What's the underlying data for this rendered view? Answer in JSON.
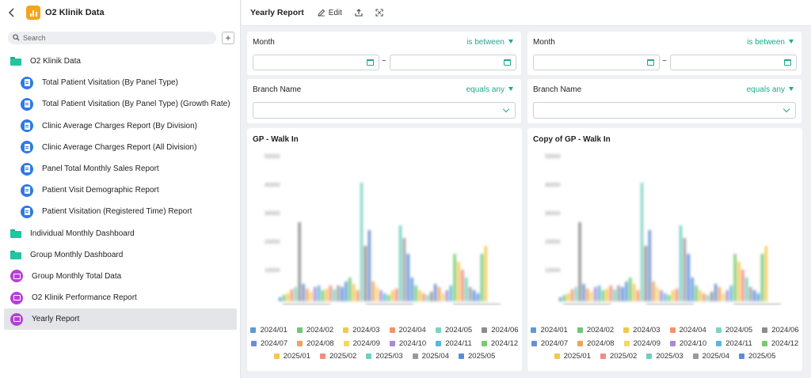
{
  "app": {
    "title": "O2 Klinik Data"
  },
  "search": {
    "placeholder": "Search"
  },
  "sidebar": {
    "items": [
      {
        "label": "O2 Klinik Data",
        "kind": "folder",
        "level": 1,
        "icon": "folder-icon"
      },
      {
        "label": "Total Patient Visitation (By Panel Type)",
        "kind": "report",
        "level": 2,
        "icon": "report-icon"
      },
      {
        "label": "Total Patient Visitation (By Panel Type) (Growth Rate)",
        "kind": "report",
        "level": 2,
        "icon": "report-icon"
      },
      {
        "label": "Clinic Average Charges Report (By Division)",
        "kind": "report",
        "level": 2,
        "icon": "report-icon"
      },
      {
        "label": "Clinic Average Charges Report (All Division)",
        "kind": "report",
        "level": 2,
        "icon": "report-icon"
      },
      {
        "label": "Panel Total Monthly Sales Report",
        "kind": "report",
        "level": 2,
        "icon": "report-icon"
      },
      {
        "label": "Patient Visit Demographic Report",
        "kind": "report",
        "level": 2,
        "icon": "report-icon"
      },
      {
        "label": "Patient Visitation (Registered Time) Report",
        "kind": "report",
        "level": 2,
        "icon": "report-icon"
      },
      {
        "label": "Individual Monthly Dashboard",
        "kind": "folder",
        "level": 1,
        "icon": "folder-icon"
      },
      {
        "label": "Group Monthly Dashboard",
        "kind": "folder",
        "level": 1,
        "icon": "folder-icon"
      },
      {
        "label": "Group Monthly Total Data",
        "kind": "dashboard",
        "level": 1,
        "icon": "dashboard-icon"
      },
      {
        "label": "O2 Klinik Performance Report",
        "kind": "dashboard",
        "level": 1,
        "icon": "dashboard-icon"
      },
      {
        "label": "Yearly Report",
        "kind": "dashboard",
        "level": 1,
        "icon": "dashboard-icon",
        "selected": true
      }
    ]
  },
  "topbar": {
    "title": "Yearly Report",
    "edit_label": "Edit"
  },
  "filters": {
    "month": {
      "label": "Month",
      "operator": "is between",
      "tilde": "~"
    },
    "branch": {
      "label": "Branch Name",
      "operator": "equals any"
    }
  },
  "charts": [
    {
      "title": "GP - Walk In"
    },
    {
      "title": "Copy of GP - Walk In"
    }
  ],
  "chart_data": [
    {
      "type": "bar",
      "title": "GP - Walk In",
      "y_ticks": [
        "50000",
        "40000",
        "30000",
        "20000",
        "10000"
      ],
      "series": [
        {
          "name": "2024/01",
          "color": "#5b9bd5"
        },
        {
          "name": "2024/02",
          "color": "#70c877"
        },
        {
          "name": "2024/03",
          "color": "#f2c94c"
        },
        {
          "name": "2024/04",
          "color": "#f2946b"
        },
        {
          "name": "2024/05",
          "color": "#7fd3c4"
        },
        {
          "name": "2024/06",
          "color": "#8c8c8c"
        },
        {
          "name": "2024/07",
          "color": "#6b8fd6"
        },
        {
          "name": "2024/08",
          "color": "#f0a35c"
        },
        {
          "name": "2024/09",
          "color": "#f5d66b"
        },
        {
          "name": "2024/10",
          "color": "#a98ad6"
        },
        {
          "name": "2024/11",
          "color": "#5bb8d9"
        },
        {
          "name": "2024/12",
          "color": "#7bc96f"
        },
        {
          "name": "2025/01",
          "color": "#f2c94c"
        },
        {
          "name": "2025/02",
          "color": "#f28b82"
        },
        {
          "name": "2025/03",
          "color": "#6fd0c0"
        },
        {
          "name": "2025/04",
          "color": "#9a9a9a"
        },
        {
          "name": "2025/05",
          "color": "#5a8de0"
        }
      ]
    },
    {
      "type": "bar",
      "title": "Copy of GP - Walk In",
      "y_ticks": [
        "50000",
        "40000",
        "30000",
        "20000",
        "10000"
      ],
      "series": [
        {
          "name": "2024/01",
          "color": "#5b9bd5"
        },
        {
          "name": "2024/02",
          "color": "#70c877"
        },
        {
          "name": "2024/03",
          "color": "#f2c94c"
        },
        {
          "name": "2024/04",
          "color": "#f2946b"
        },
        {
          "name": "2024/05",
          "color": "#7fd3c4"
        },
        {
          "name": "2024/06",
          "color": "#8c8c8c"
        },
        {
          "name": "2024/07",
          "color": "#6b8fd6"
        },
        {
          "name": "2024/08",
          "color": "#f0a35c"
        },
        {
          "name": "2024/09",
          "color": "#f5d66b"
        },
        {
          "name": "2024/10",
          "color": "#a98ad6"
        },
        {
          "name": "2024/11",
          "color": "#5bb8d9"
        },
        {
          "name": "2024/12",
          "color": "#7bc96f"
        },
        {
          "name": "2025/01",
          "color": "#f2c94c"
        },
        {
          "name": "2025/02",
          "color": "#f28b82"
        },
        {
          "name": "2025/03",
          "color": "#6fd0c0"
        },
        {
          "name": "2025/04",
          "color": "#9a9a9a"
        },
        {
          "name": "2025/05",
          "color": "#5a8de0"
        }
      ]
    }
  ]
}
